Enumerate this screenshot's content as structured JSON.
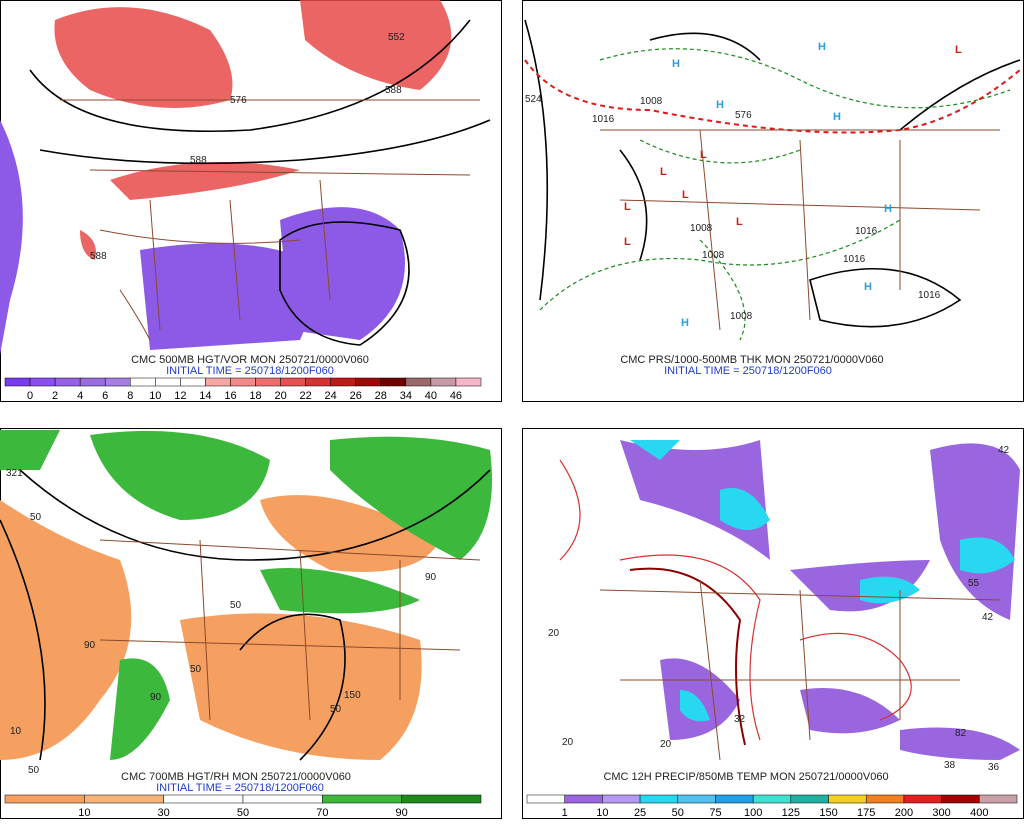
{
  "panels": [
    {
      "caption": "CMC 500MB HGT/VOR MON 250721/0000V060",
      "initial_time": "INITIAL TIME = 250718/1200F060",
      "map_labels": [
        "552",
        "588",
        "576",
        "588",
        "588"
      ],
      "colorbar": {
        "labels": [
          "0",
          "2",
          "4",
          "6",
          "8",
          "10",
          "12",
          "14",
          "16",
          "18",
          "20",
          "22",
          "24",
          "26",
          "28",
          "34",
          "40",
          "46"
        ],
        "colors": [
          "#7a3cf0",
          "#8a4ef2",
          "#9460e6",
          "#9a6ce0",
          "#a67ee4",
          "#ffffff",
          "#ffffff",
          "#ffffff",
          "#f7a6a6",
          "#f28a8a",
          "#ee6e6e",
          "#e65050",
          "#d83030",
          "#c21818",
          "#9e0a0a",
          "#6e0000",
          "#9a6a6a",
          "#c89aa6",
          "#f4b6c8"
        ]
      }
    },
    {
      "caption": "CMC PRS/1000-500MB THK MON 250721/0000V060",
      "initial_time": "INITIAL TIME = 250718/1200F060",
      "map_labels": [
        "H",
        "H",
        "H",
        "H",
        "H",
        "H",
        "H",
        "L",
        "L",
        "L",
        "L",
        "L",
        "L",
        "L",
        "1008",
        "1016",
        "1016",
        "1008",
        "1008",
        "1016",
        "1016",
        "1008",
        "576",
        "524"
      ]
    },
    {
      "caption": "CMC 700MB HGT/RH MON 250721/0000V060",
      "initial_time": "INITIAL TIME = 250718/1200F060",
      "map_labels": [
        "50",
        "90",
        "50",
        "90",
        "50",
        "50",
        "150",
        "50",
        "321",
        "90",
        "10"
      ],
      "colorbar": {
        "labels": [
          "10",
          "30",
          "50",
          "70",
          "90"
        ],
        "colors": [
          "#f5a060",
          "#f5b27a",
          "#ffffff",
          "#ffffff",
          "#3cb83c",
          "#1e8a1e"
        ]
      }
    },
    {
      "caption": "CMC 12H PRECIP/850MB TEMP MON 250721/0000V060",
      "map_labels": [
        "20",
        "20",
        "20",
        "42",
        "55",
        "42",
        "38",
        "36",
        "32",
        "82"
      ],
      "colorbar": {
        "labels": [
          "1",
          "10",
          "25",
          "50",
          "75",
          "100",
          "125",
          "150",
          "175",
          "200",
          "300",
          "400"
        ],
        "colors": [
          "#ffffff",
          "#9a66e0",
          "#b49af0",
          "#28d8f0",
          "#50c0f0",
          "#20a0e8",
          "#40e0d0",
          "#20b0a0",
          "#f0d020",
          "#f08020",
          "#e02020",
          "#a00000",
          "#c8a0a8"
        ]
      }
    }
  ]
}
